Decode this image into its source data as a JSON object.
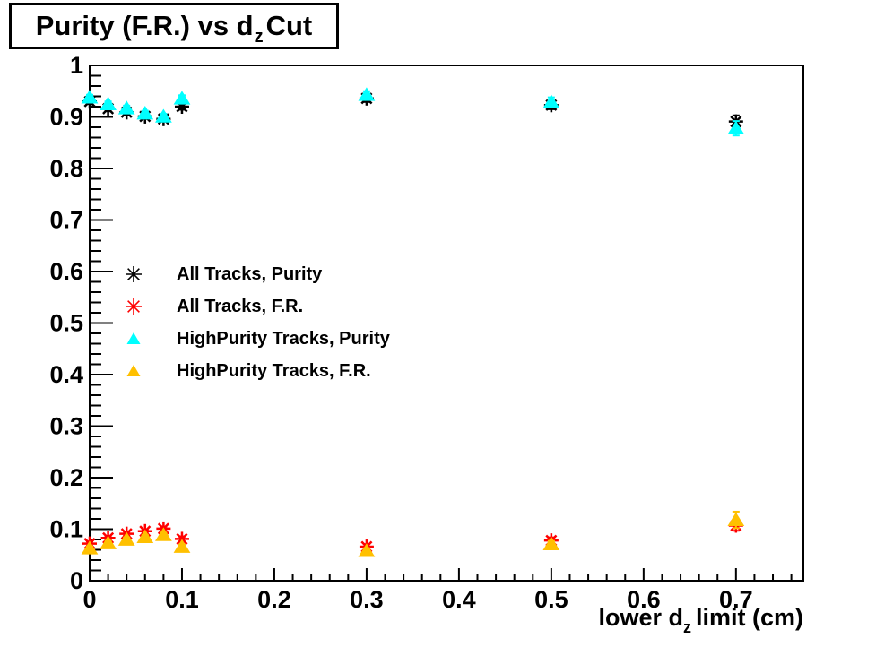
{
  "title": {
    "prefix": "Purity (F.R.) vs d",
    "subscript": "z",
    "suffix": "Cut"
  },
  "x_axis_label": {
    "prefix": "lower d",
    "subscript": "z",
    "suffix": "limit (cm)"
  },
  "colors": {
    "frame": "#000000",
    "background": "#ffffff"
  },
  "chart_data": {
    "type": "scatter",
    "title": "Purity (F.R.) vs d_z Cut",
    "xlabel": "lower d_z limit (cm)",
    "ylabel": "",
    "grid": false,
    "legend_position": "middle-left",
    "xlim": [
      0,
      0.773
    ],
    "ylim": [
      0,
      1
    ],
    "x_major_ticks": [
      0,
      0.1,
      0.2,
      0.3,
      0.4,
      0.5,
      0.6,
      0.7
    ],
    "x_tick_labels": [
      "0",
      "0.1",
      "0.2",
      "0.3",
      "0.4",
      "0.5",
      "0.6",
      "0.7"
    ],
    "y_major_ticks": [
      0,
      0.1,
      0.2,
      0.3,
      0.4,
      0.5,
      0.6,
      0.7,
      0.8,
      0.9,
      1
    ],
    "y_tick_labels": [
      "0",
      "0.1",
      "0.2",
      "0.3",
      "0.4",
      "0.5",
      "0.6",
      "0.7",
      "0.8",
      "0.9",
      "1"
    ],
    "minor_tick_step": 0.02,
    "x": [
      0,
      0.02,
      0.04,
      0.06,
      0.08,
      0.1,
      0.3,
      0.5,
      0.7
    ],
    "series": [
      {
        "name": "All Tracks, Purity",
        "marker": "asterisk",
        "color": "#000000",
        "y": [
          0.93,
          0.916,
          0.909,
          0.901,
          0.896,
          0.92,
          0.936,
          0.923,
          0.891
        ],
        "yerr": [
          0.005,
          0.005,
          0.005,
          0.005,
          0.005,
          0.006,
          0.007,
          0.008,
          0.012
        ]
      },
      {
        "name": "All Tracks, F.R.",
        "marker": "asterisk",
        "color": "#FF0000",
        "y": [
          0.072,
          0.083,
          0.091,
          0.096,
          0.101,
          0.081,
          0.066,
          0.078,
          0.107
        ],
        "yerr": [
          0.004,
          0.004,
          0.004,
          0.004,
          0.004,
          0.005,
          0.005,
          0.006,
          0.01
        ]
      },
      {
        "name": "HighPurity Tracks, Purity",
        "marker": "triangle",
        "color": "#00FFFF",
        "y": [
          0.938,
          0.925,
          0.917,
          0.907,
          0.901,
          0.936,
          0.943,
          0.929,
          0.878
        ],
        "yerr": [
          0.005,
          0.005,
          0.005,
          0.005,
          0.005,
          0.006,
          0.007,
          0.009,
          0.014
        ]
      },
      {
        "name": "HighPurity Tracks, F.R.",
        "marker": "triangle",
        "color": "#FFC000",
        "y": [
          0.063,
          0.073,
          0.08,
          0.085,
          0.089,
          0.066,
          0.058,
          0.071,
          0.118
        ],
        "yerr": [
          0.004,
          0.004,
          0.004,
          0.004,
          0.004,
          0.004,
          0.005,
          0.006,
          0.016
        ]
      }
    ]
  }
}
